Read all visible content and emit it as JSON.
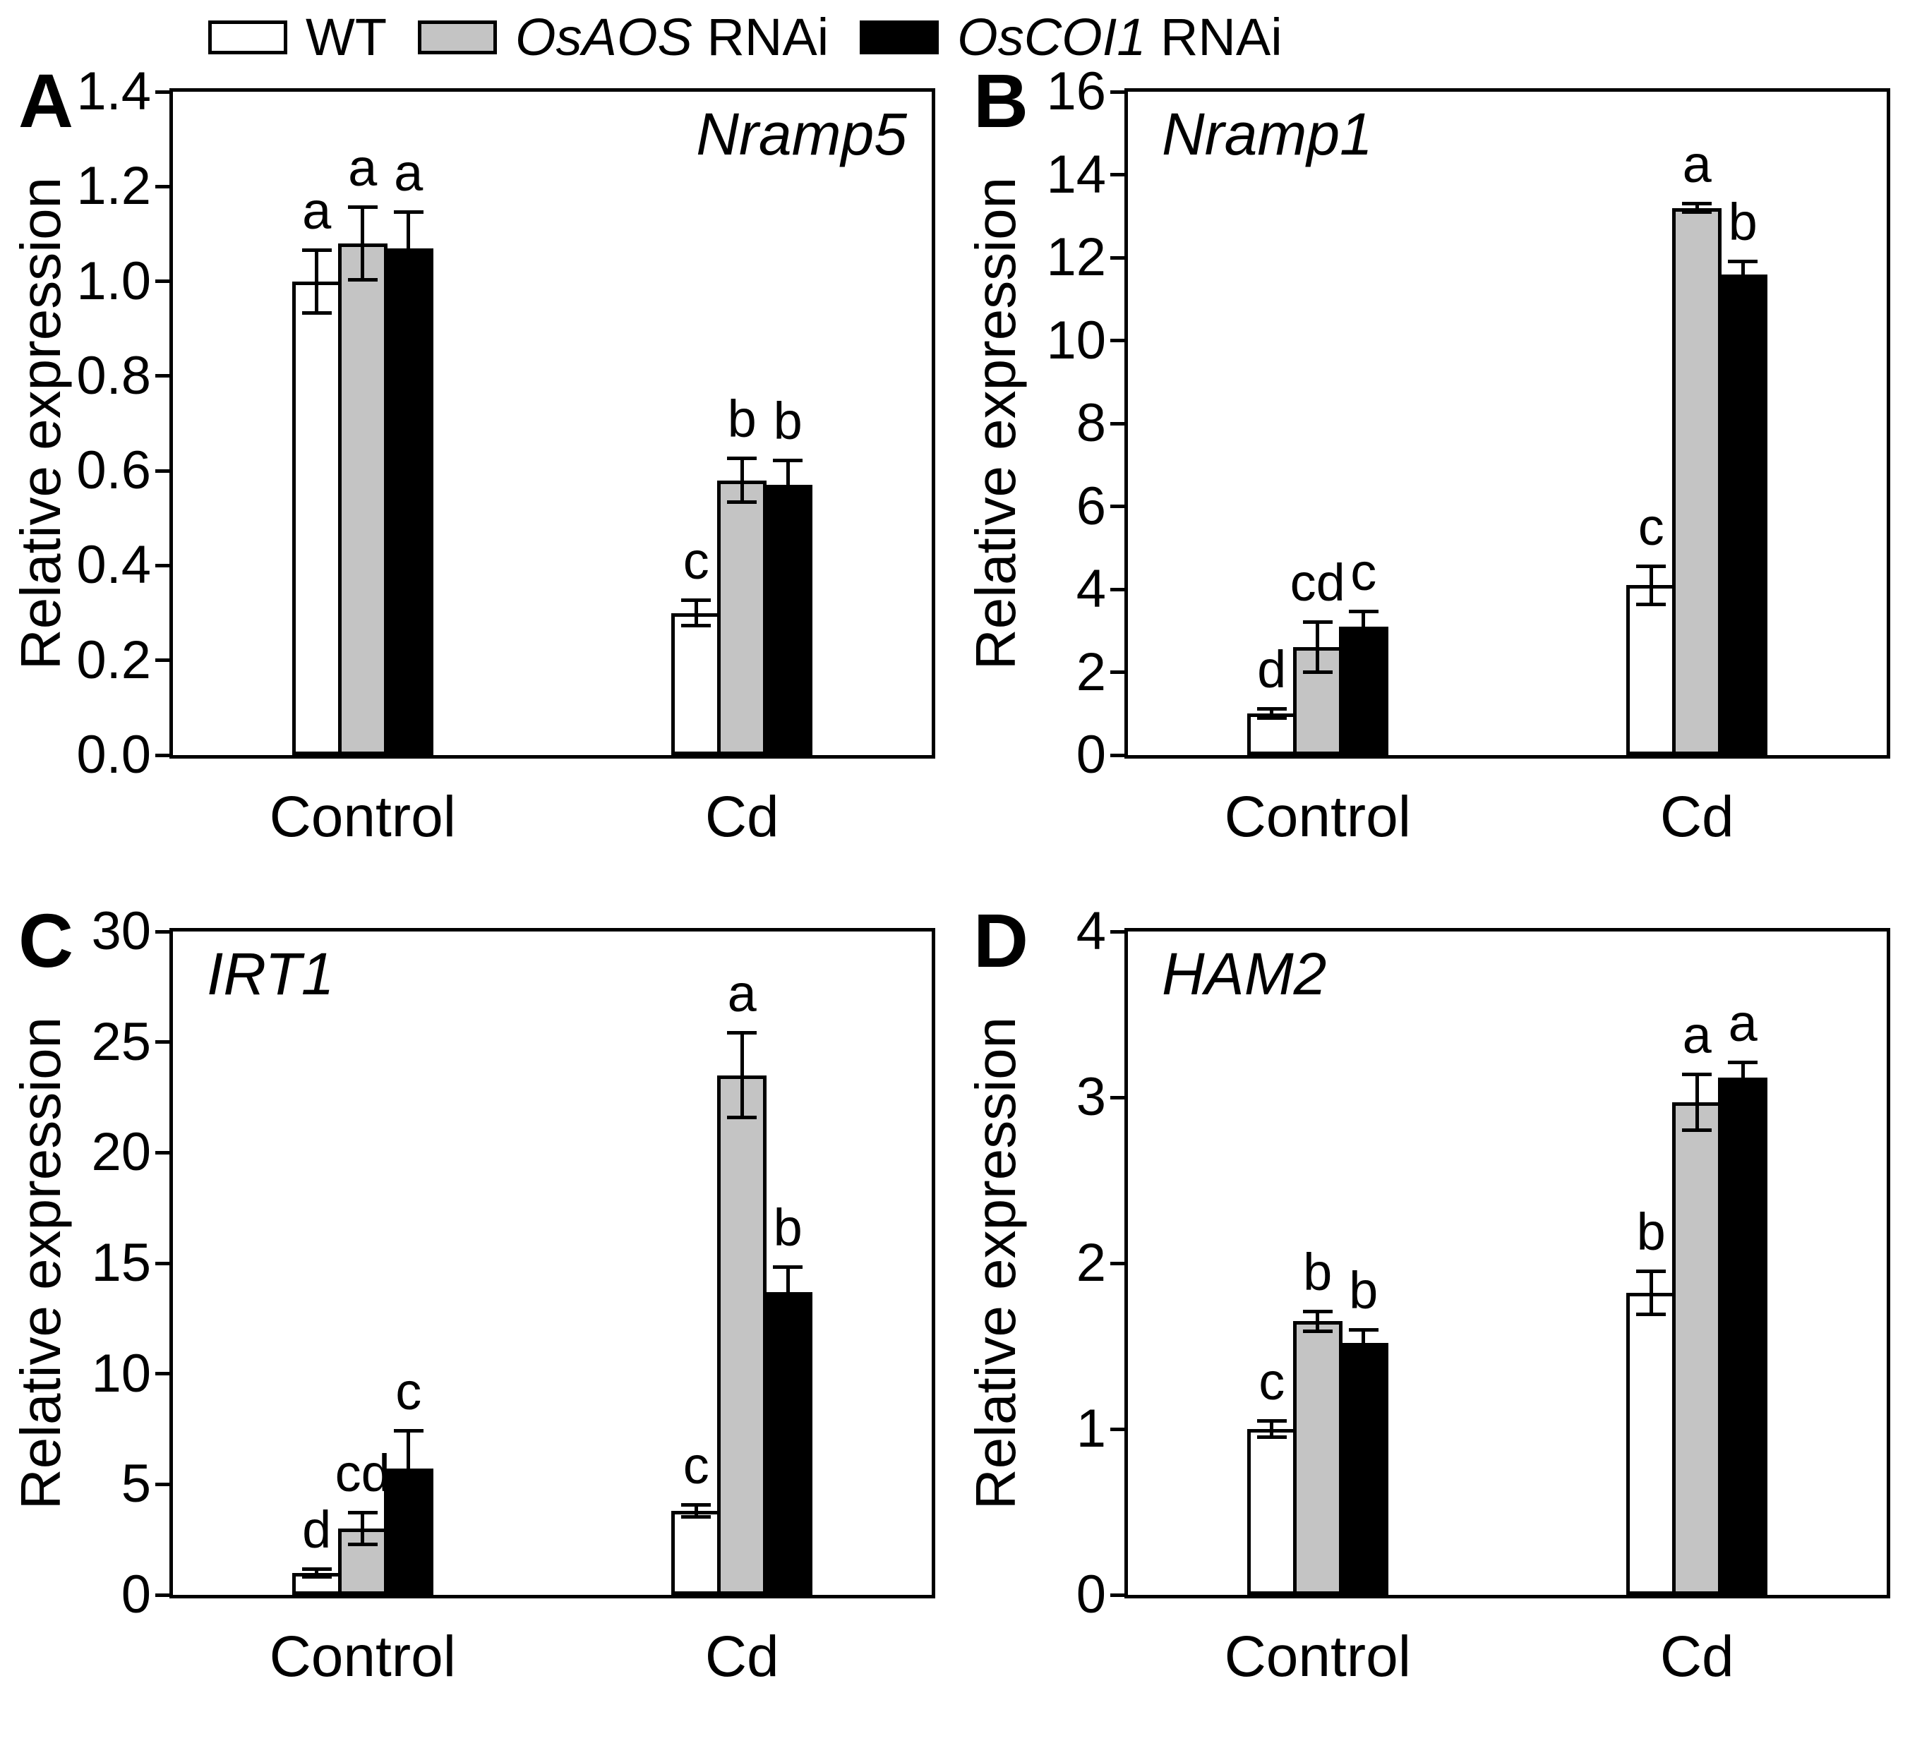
{
  "figure": {
    "background": "#ffffff",
    "series_colors": [
      "#ffffff",
      "#c4c4c4",
      "#000000"
    ],
    "legend": [
      {
        "swatch_color": "#ffffff",
        "label_italic": "",
        "label": "WT"
      },
      {
        "swatch_color": "#c4c4c4",
        "label_italic": "OsAOS",
        "label": " RNAi"
      },
      {
        "swatch_color": "#000000",
        "label_italic": "OsCOI1",
        "label": " RNAi"
      }
    ]
  },
  "chart_data": [
    {
      "type": "bar",
      "panel": "A",
      "gene": "Nramp5",
      "gene_label_side": "right",
      "ylabel": "Relative expression",
      "categories": [
        "Control",
        "Cd"
      ],
      "ylim": [
        0,
        1.4
      ],
      "ytick_step": 0.2,
      "ytick_decimals": 1,
      "grid": false,
      "series": [
        {
          "name": "WT",
          "values": [
            1.0,
            0.3
          ],
          "errors": [
            0.07,
            0.03
          ],
          "letters": [
            "a",
            "c"
          ]
        },
        {
          "name": "OsAOS RNAi",
          "values": [
            1.08,
            0.58
          ],
          "errors": [
            0.08,
            0.05
          ],
          "letters": [
            "a",
            "b"
          ]
        },
        {
          "name": "OsCOI1 RNAi",
          "values": [
            1.07,
            0.57
          ],
          "errors": [
            0.08,
            0.055
          ],
          "letters": [
            "a",
            "b"
          ]
        }
      ]
    },
    {
      "type": "bar",
      "panel": "B",
      "gene": "Nramp1",
      "gene_label_side": "left",
      "ylabel": "Relative expression",
      "categories": [
        "Control",
        "Cd"
      ],
      "ylim": [
        0,
        16
      ],
      "ytick_step": 2,
      "ytick_decimals": 0,
      "grid": false,
      "series": [
        {
          "name": "WT",
          "values": [
            1.0,
            4.1
          ],
          "errors": [
            0.15,
            0.5
          ],
          "letters": [
            "d",
            "c"
          ]
        },
        {
          "name": "OsAOS RNAi",
          "values": [
            2.6,
            13.2
          ],
          "errors": [
            0.65,
            0.15
          ],
          "letters": [
            "cd",
            "a"
          ]
        },
        {
          "name": "OsCOI1 RNAi",
          "values": [
            3.1,
            11.6
          ],
          "errors": [
            0.4,
            0.35
          ],
          "letters": [
            "c",
            "b"
          ]
        }
      ]
    },
    {
      "type": "bar",
      "panel": "C",
      "gene": "IRT1",
      "gene_label_side": "left",
      "ylabel": "Relative expression",
      "categories": [
        "Control",
        "Cd"
      ],
      "ylim": [
        0,
        30
      ],
      "ytick_step": 5,
      "ytick_decimals": 0,
      "grid": false,
      "series": [
        {
          "name": "WT",
          "values": [
            1.0,
            3.8
          ],
          "errors": [
            0.25,
            0.35
          ],
          "letters": [
            "d",
            "c"
          ]
        },
        {
          "name": "OsAOS RNAi",
          "values": [
            3.0,
            23.5
          ],
          "errors": [
            0.8,
            2.0
          ],
          "letters": [
            "cd",
            "a"
          ]
        },
        {
          "name": "OsCOI1 RNAi",
          "values": [
            5.7,
            13.7
          ],
          "errors": [
            1.8,
            1.2
          ],
          "letters": [
            "c",
            "b"
          ]
        }
      ]
    },
    {
      "type": "bar",
      "panel": "D",
      "gene": "HAM2",
      "gene_label_side": "left",
      "ylabel": "Relative expression",
      "categories": [
        "Control",
        "Cd"
      ],
      "ylim": [
        0,
        4
      ],
      "ytick_step": 1,
      "ytick_decimals": 0,
      "grid": false,
      "series": [
        {
          "name": "WT",
          "values": [
            1.0,
            1.82
          ],
          "errors": [
            0.06,
            0.14
          ],
          "letters": [
            "c",
            "b"
          ]
        },
        {
          "name": "OsAOS RNAi",
          "values": [
            1.65,
            2.97
          ],
          "errors": [
            0.07,
            0.18
          ],
          "letters": [
            "b",
            "a"
          ]
        },
        {
          "name": "OsCOI1 RNAi",
          "values": [
            1.52,
            3.12
          ],
          "errors": [
            0.09,
            0.1
          ],
          "letters": [
            "b",
            "a"
          ]
        }
      ]
    }
  ]
}
